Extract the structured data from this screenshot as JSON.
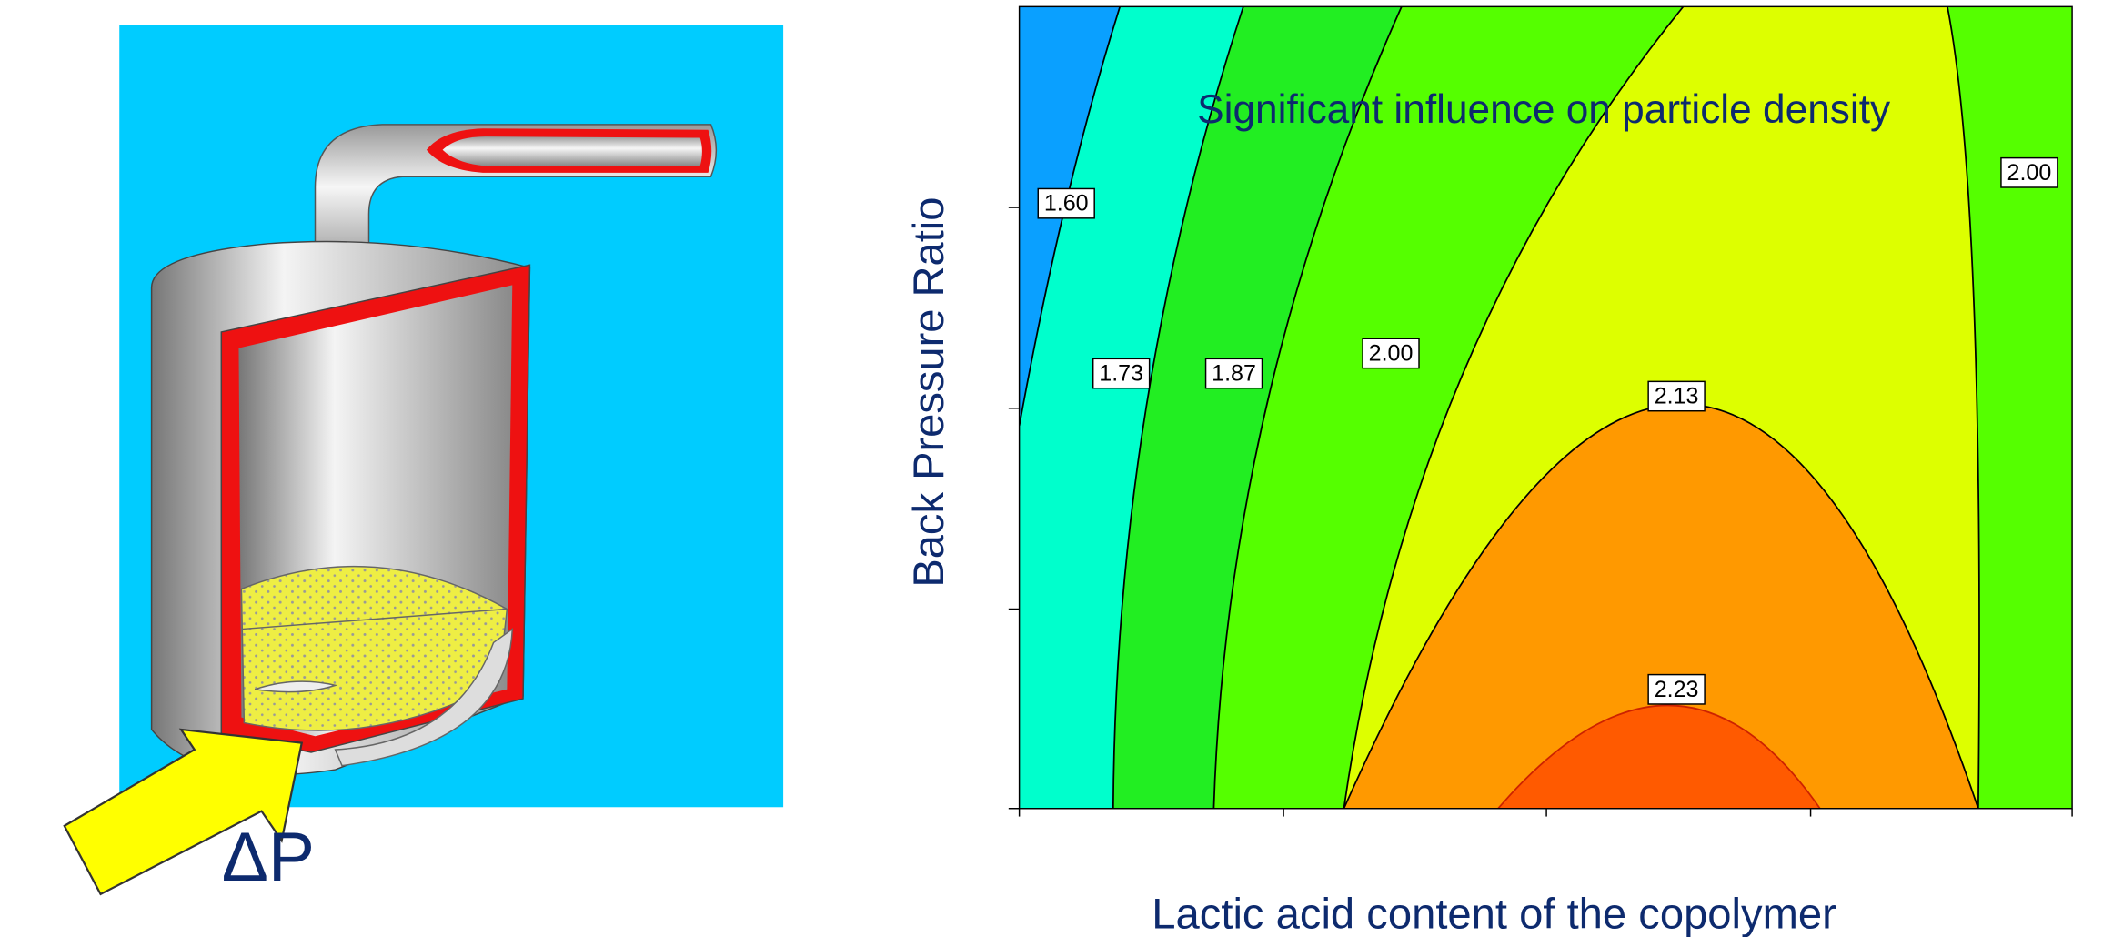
{
  "chart_data": {
    "type": "contour",
    "title": "Significant influence on particle density",
    "x_label": "Lactic acid content of the copolymer",
    "y_label": "Back Pressure Ratio",
    "values": [
      1.6,
      1.73,
      1.87,
      2,
      2.13,
      2.23,
      2
    ],
    "value_labels": [
      "1.60",
      "1.73",
      "1.87",
      "2.00",
      "2.13",
      "2.23",
      "2.00"
    ],
    "colors": [
      "#0aa0ff",
      "#00ffcc",
      "#22ee22",
      "#55ff00",
      "#ddff00",
      "#ff9900",
      "#ff5a00"
    ]
  },
  "illustration": {
    "annotation": "ΔP"
  }
}
